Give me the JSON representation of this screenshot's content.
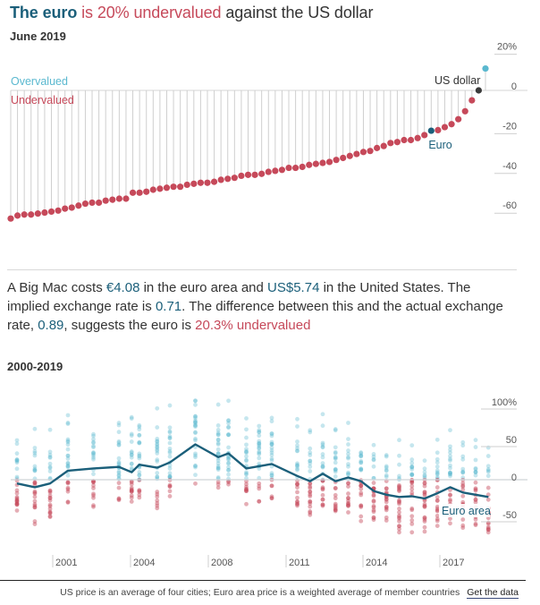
{
  "header": {
    "title_part1": "The euro",
    "title_part2": " is 20% undervalued",
    "title_part3": " against the US dollar",
    "subtitle": "June 2019"
  },
  "colors": {
    "euro_blue": "#1b5f7a",
    "undervalued_red": "#c6495a",
    "overvalued_cyan": "#5ab8cf",
    "us_dollar_dark": "#3a3a3a",
    "baseline_grey": "#cccccc"
  },
  "description": {
    "p1": "A Big Mac costs ",
    "euro_price": "€4.08",
    "p2": " in the euro area and ",
    "us_price": "US$5.74",
    "p3": " in the United States. The implied exchange rate is ",
    "implied_rate": "0.71",
    "p4": ". The difference between this and the actual exchange rate, ",
    "actual_rate": "0.89",
    "p5": ", suggests the euro is ",
    "valuation": "20.3% undervalued"
  },
  "section2_title": "2000-2019",
  "footer": {
    "note": "US price is an average of four cities; Euro area price is a weighted average of member countries",
    "link_label": "Get the data"
  },
  "chart_data": [
    {
      "type": "scatter",
      "title": "June 2019",
      "subtype": "lollipop ranking",
      "legend": {
        "overvalued": "Overvalued",
        "undervalued": "Undervalued"
      },
      "ylabel": "",
      "ylim": [
        -70,
        25
      ],
      "yticks": [
        "20%",
        "0",
        "-20",
        "-40",
        "-60"
      ],
      "ytick_values": [
        20,
        0,
        -20,
        -40,
        -60
      ],
      "annotations": [
        {
          "label": "US dollar",
          "value": 0
        },
        {
          "label": "Euro",
          "value": -20.3
        }
      ],
      "values": [
        -64.5,
        -63,
        -62.5,
        -62.5,
        -62,
        -61.5,
        -61,
        -60.5,
        -59.5,
        -59,
        -58,
        -57,
        -56.5,
        -56.5,
        -55.5,
        -55,
        -54.5,
        -54.5,
        -51.5,
        -51.5,
        -51,
        -50,
        -49.5,
        -49,
        -48.5,
        -48.5,
        -47.5,
        -47,
        -46.5,
        -46.5,
        -46,
        -45,
        -44.5,
        -44,
        -43,
        -42.5,
        -42.5,
        -42,
        -41,
        -40.5,
        -40,
        -39,
        -39,
        -38.5,
        -37.5,
        -37,
        -36.5,
        -36,
        -35,
        -34,
        -33,
        -32,
        -31,
        -30.5,
        -29,
        -28,
        -26.5,
        -26,
        -25,
        -25,
        -24,
        -22.5,
        -20.3,
        -20,
        -18.5,
        -17,
        -14.5,
        -10.5,
        -5,
        0,
        11
      ],
      "highlight": {
        "euro_index": 62,
        "us_dollar_index": 69,
        "overvalued_index": 70
      }
    },
    {
      "type": "line",
      "title": "2000-2019",
      "series": [
        {
          "name": "Euro area",
          "x": [
            2000.3,
            2001.0,
            2001.6,
            2002.3,
            2003.3,
            2004.3,
            2004.8,
            2005.1,
            2005.8,
            2006.3,
            2007.3,
            2008.2,
            2008.6,
            2009.3,
            2009.8,
            2010.3,
            2011.3,
            2011.8,
            2012.3,
            2012.8,
            2013.3,
            2013.8,
            2014.3,
            2014.8,
            2015.3,
            2015.8,
            2016.3,
            2016.8,
            2017.3,
            2017.8,
            2018.3,
            2018.8
          ],
          "values": [
            -5,
            -10,
            -5,
            12,
            15,
            17,
            10,
            20,
            16,
            23,
            47,
            30,
            35,
            15,
            18,
            21,
            5,
            -2,
            8,
            -2,
            3,
            -2,
            -15,
            -20,
            -23,
            -22,
            -25,
            -18,
            -10,
            -17,
            -20,
            -23
          ]
        }
      ],
      "background_scatter": "Dots show individual countries' valuations per survey: cyan = overvalued, red = undervalued",
      "xticks": [
        "2001",
        "2004",
        "2008",
        "2011",
        "2014",
        "2017"
      ],
      "yticks": [
        "100%",
        "50",
        "0",
        "-50"
      ],
      "ytick_values": [
        100,
        50,
        0,
        -50
      ],
      "ylim": [
        -75,
        110
      ],
      "annotation": "Euro area"
    }
  ]
}
